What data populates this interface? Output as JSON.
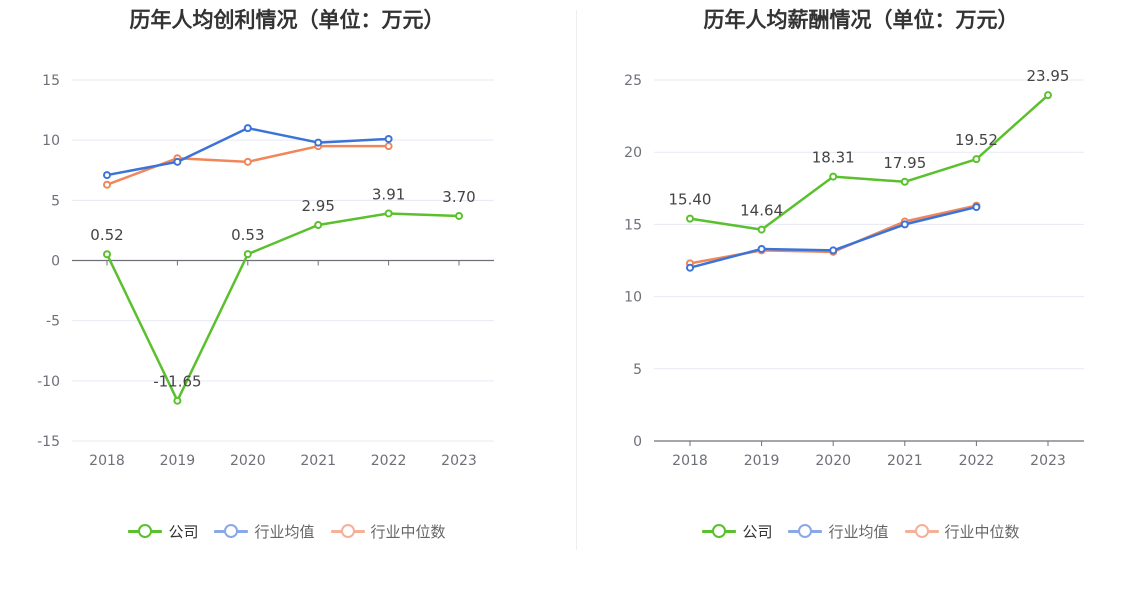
{
  "colors": {
    "company": "#5ac02d",
    "industry_avg": "#3b73d9",
    "industry_median": "#f0865a",
    "legend_avg": "#8aa8e8",
    "legend_median": "#f5b09a",
    "grid": "#e6e9f2",
    "axis": "#6e7079"
  },
  "legend": {
    "company": "公司",
    "industry_avg": "行业均值",
    "industry_median": "行业中位数"
  },
  "chart_data": [
    {
      "type": "line",
      "title": "历年人均创利情况（单位：万元）",
      "categories": [
        "2018",
        "2019",
        "2020",
        "2021",
        "2022",
        "2023"
      ],
      "ylim": [
        -15,
        15
      ],
      "yticks": [
        15,
        10,
        5,
        0,
        -5,
        -10,
        -15
      ],
      "ytick_labels": [
        "15",
        "10",
        "5",
        "0",
        "-5",
        "-10",
        "-15"
      ],
      "grid": true,
      "legend_position": "bottom",
      "series": [
        {
          "name": "公司",
          "key": "company",
          "values": [
            0.52,
            -11.65,
            0.53,
            2.95,
            3.91,
            3.7
          ],
          "labels": [
            "0.52",
            "-11.65",
            "0.53",
            "2.95",
            "3.91",
            "3.70"
          ]
        },
        {
          "name": "行业均值",
          "key": "industry_avg",
          "values": [
            7.1,
            8.2,
            11.0,
            9.8,
            10.1,
            null
          ]
        },
        {
          "name": "行业中位数",
          "key": "industry_median",
          "values": [
            6.3,
            8.5,
            8.2,
            9.5,
            9.5,
            null
          ]
        }
      ]
    },
    {
      "type": "line",
      "title": "历年人均薪酬情况（单位：万元）",
      "categories": [
        "2018",
        "2019",
        "2020",
        "2021",
        "2022",
        "2023"
      ],
      "ylim": [
        0,
        25
      ],
      "yticks": [
        25,
        20,
        15,
        10,
        5,
        0
      ],
      "ytick_labels": [
        "25",
        "20",
        "15",
        "10",
        "5",
        "0"
      ],
      "grid": true,
      "legend_position": "bottom",
      "series": [
        {
          "name": "公司",
          "key": "company",
          "values": [
            15.4,
            14.64,
            18.31,
            17.95,
            19.52,
            23.95
          ],
          "labels": [
            "15.40",
            "14.64",
            "18.31",
            "17.95",
            "19.52",
            "23.95"
          ]
        },
        {
          "name": "行业均值",
          "key": "industry_avg",
          "values": [
            12.0,
            13.3,
            13.2,
            15.0,
            16.2,
            null
          ]
        },
        {
          "name": "行业中位数",
          "key": "industry_median",
          "values": [
            12.3,
            13.2,
            13.1,
            15.2,
            16.3,
            null
          ]
        }
      ]
    }
  ]
}
